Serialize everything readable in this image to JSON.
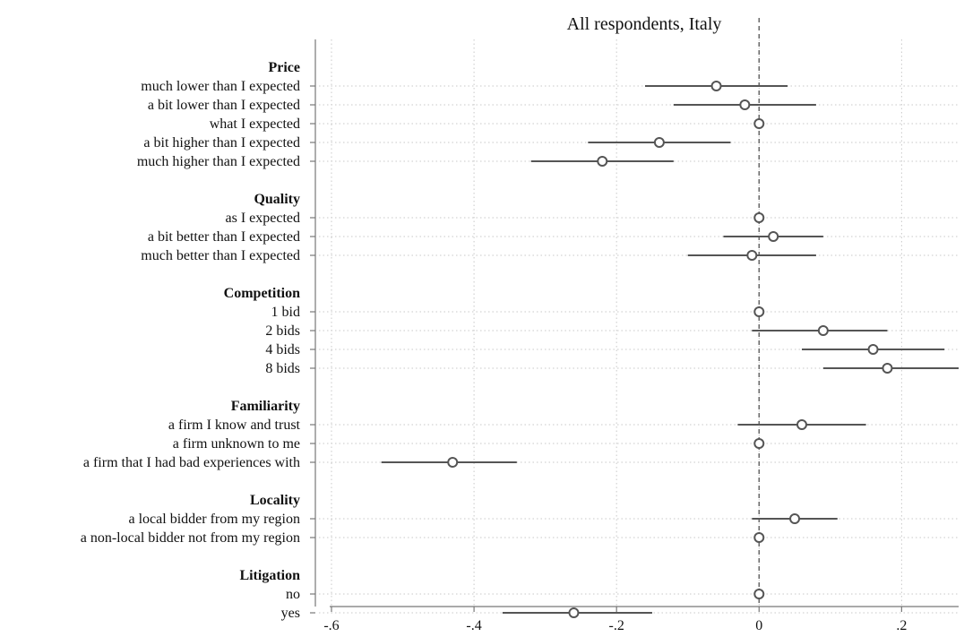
{
  "chart_data": {
    "type": "coefficient-plot",
    "title": "All respondents, Italy",
    "xlim": [
      -0.6,
      0.28
    ],
    "x_ticks": [
      -0.6,
      -0.4,
      -0.2,
      0,
      0.2
    ],
    "x_tick_labels": [
      "-.6",
      "-.4",
      "-.2",
      "0",
      ".2"
    ],
    "reference_line": 0,
    "grid": true,
    "colors": {
      "marker": "#555555",
      "ci_line": "#555555",
      "grid": "#c8c8c8",
      "axis": "#777777"
    },
    "groups": [
      {
        "label": "Price",
        "items": [
          {
            "label": "much lower than I expected",
            "estimate": -0.06,
            "ci": [
              -0.16,
              0.04
            ]
          },
          {
            "label": "a bit lower than I expected",
            "estimate": -0.02,
            "ci": [
              -0.12,
              0.08
            ]
          },
          {
            "label": "what I expected",
            "estimate": 0,
            "ci": [
              0,
              0
            ]
          },
          {
            "label": "a bit higher than I expected",
            "estimate": -0.14,
            "ci": [
              -0.24,
              -0.04
            ]
          },
          {
            "label": "much higher than I expected",
            "estimate": -0.22,
            "ci": [
              -0.32,
              -0.12
            ]
          }
        ]
      },
      {
        "label": "Quality",
        "items": [
          {
            "label": "as I expected",
            "estimate": 0,
            "ci": [
              0,
              0
            ]
          },
          {
            "label": "a bit better than I expected",
            "estimate": 0.02,
            "ci": [
              -0.05,
              0.09
            ]
          },
          {
            "label": "much better than I expected",
            "estimate": -0.01,
            "ci": [
              -0.1,
              0.08
            ]
          }
        ]
      },
      {
        "label": "Competition",
        "items": [
          {
            "label": "1 bid",
            "estimate": 0,
            "ci": [
              0,
              0
            ]
          },
          {
            "label": "2 bids",
            "estimate": 0.09,
            "ci": [
              -0.01,
              0.18
            ]
          },
          {
            "label": "4 bids",
            "estimate": 0.16,
            "ci": [
              0.06,
              0.26
            ]
          },
          {
            "label": "8 bids",
            "estimate": 0.18,
            "ci": [
              0.09,
              0.28
            ]
          }
        ]
      },
      {
        "label": "Familiarity",
        "items": [
          {
            "label": "a firm I know and trust",
            "estimate": 0.06,
            "ci": [
              -0.03,
              0.15
            ]
          },
          {
            "label": "a firm unknown to me",
            "estimate": 0,
            "ci": [
              0,
              0
            ]
          },
          {
            "label": "a firm that I had bad experiences with",
            "estimate": -0.43,
            "ci": [
              -0.53,
              -0.34
            ]
          }
        ]
      },
      {
        "label": "Locality",
        "items": [
          {
            "label": "a local bidder from my region",
            "estimate": 0.05,
            "ci": [
              -0.01,
              0.11
            ]
          },
          {
            "label": "a non-local bidder not from my region",
            "estimate": 0,
            "ci": [
              0,
              0
            ]
          }
        ]
      },
      {
        "label": "Litigation",
        "items": [
          {
            "label": "no",
            "estimate": 0,
            "ci": [
              0,
              0
            ]
          },
          {
            "label": "yes",
            "estimate": -0.26,
            "ci": [
              -0.36,
              -0.15
            ]
          }
        ]
      }
    ]
  }
}
